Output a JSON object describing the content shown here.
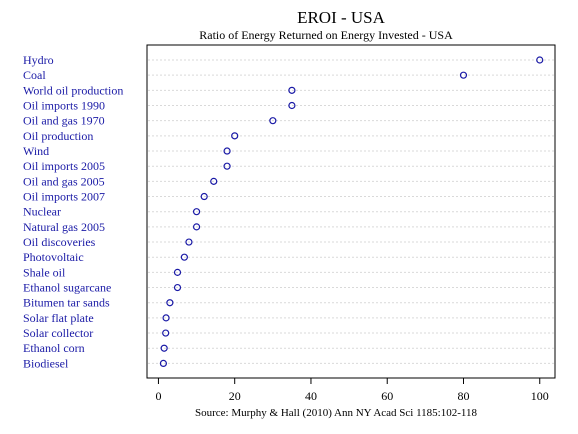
{
  "chart_data": {
    "type": "scatter",
    "title": "EROI - USA",
    "subtitle": "Ratio of Energy Returned on Energy Invested - USA",
    "source": "Source: Murphy & Hall (2010) Ann NY Acad Sci 1185:102-118",
    "xlabel": "",
    "ylabel": "",
    "xlim": [
      -3,
      104
    ],
    "xticks": [
      0,
      20,
      40,
      60,
      80,
      100
    ],
    "grid": true,
    "colors": {
      "point": "#1a1aa6",
      "label": "#1a1aa6",
      "axis": "#000000",
      "grid": "#d9d9d9"
    },
    "categories": [
      "Hydro",
      "Coal",
      "World oil production",
      "Oil imports 1990",
      "Oil and gas 1970",
      "Oil production",
      "Wind",
      "Oil imports 2005",
      "Oil and gas 2005",
      "Oil imports 2007",
      "Nuclear",
      "Natural gas 2005",
      "Oil discoveries",
      "Photovoltaic",
      "Shale oil",
      "Ethanol sugarcane",
      "Bitumen tar sands",
      "Solar flat plate",
      "Solar collector",
      "Ethanol corn",
      "Biodiesel"
    ],
    "values": [
      100,
      80,
      35,
      35,
      30,
      20,
      18,
      18,
      14.5,
      12,
      10,
      10,
      8,
      6.8,
      5,
      5,
      3,
      2,
      1.9,
      1.5,
      1.3
    ]
  }
}
